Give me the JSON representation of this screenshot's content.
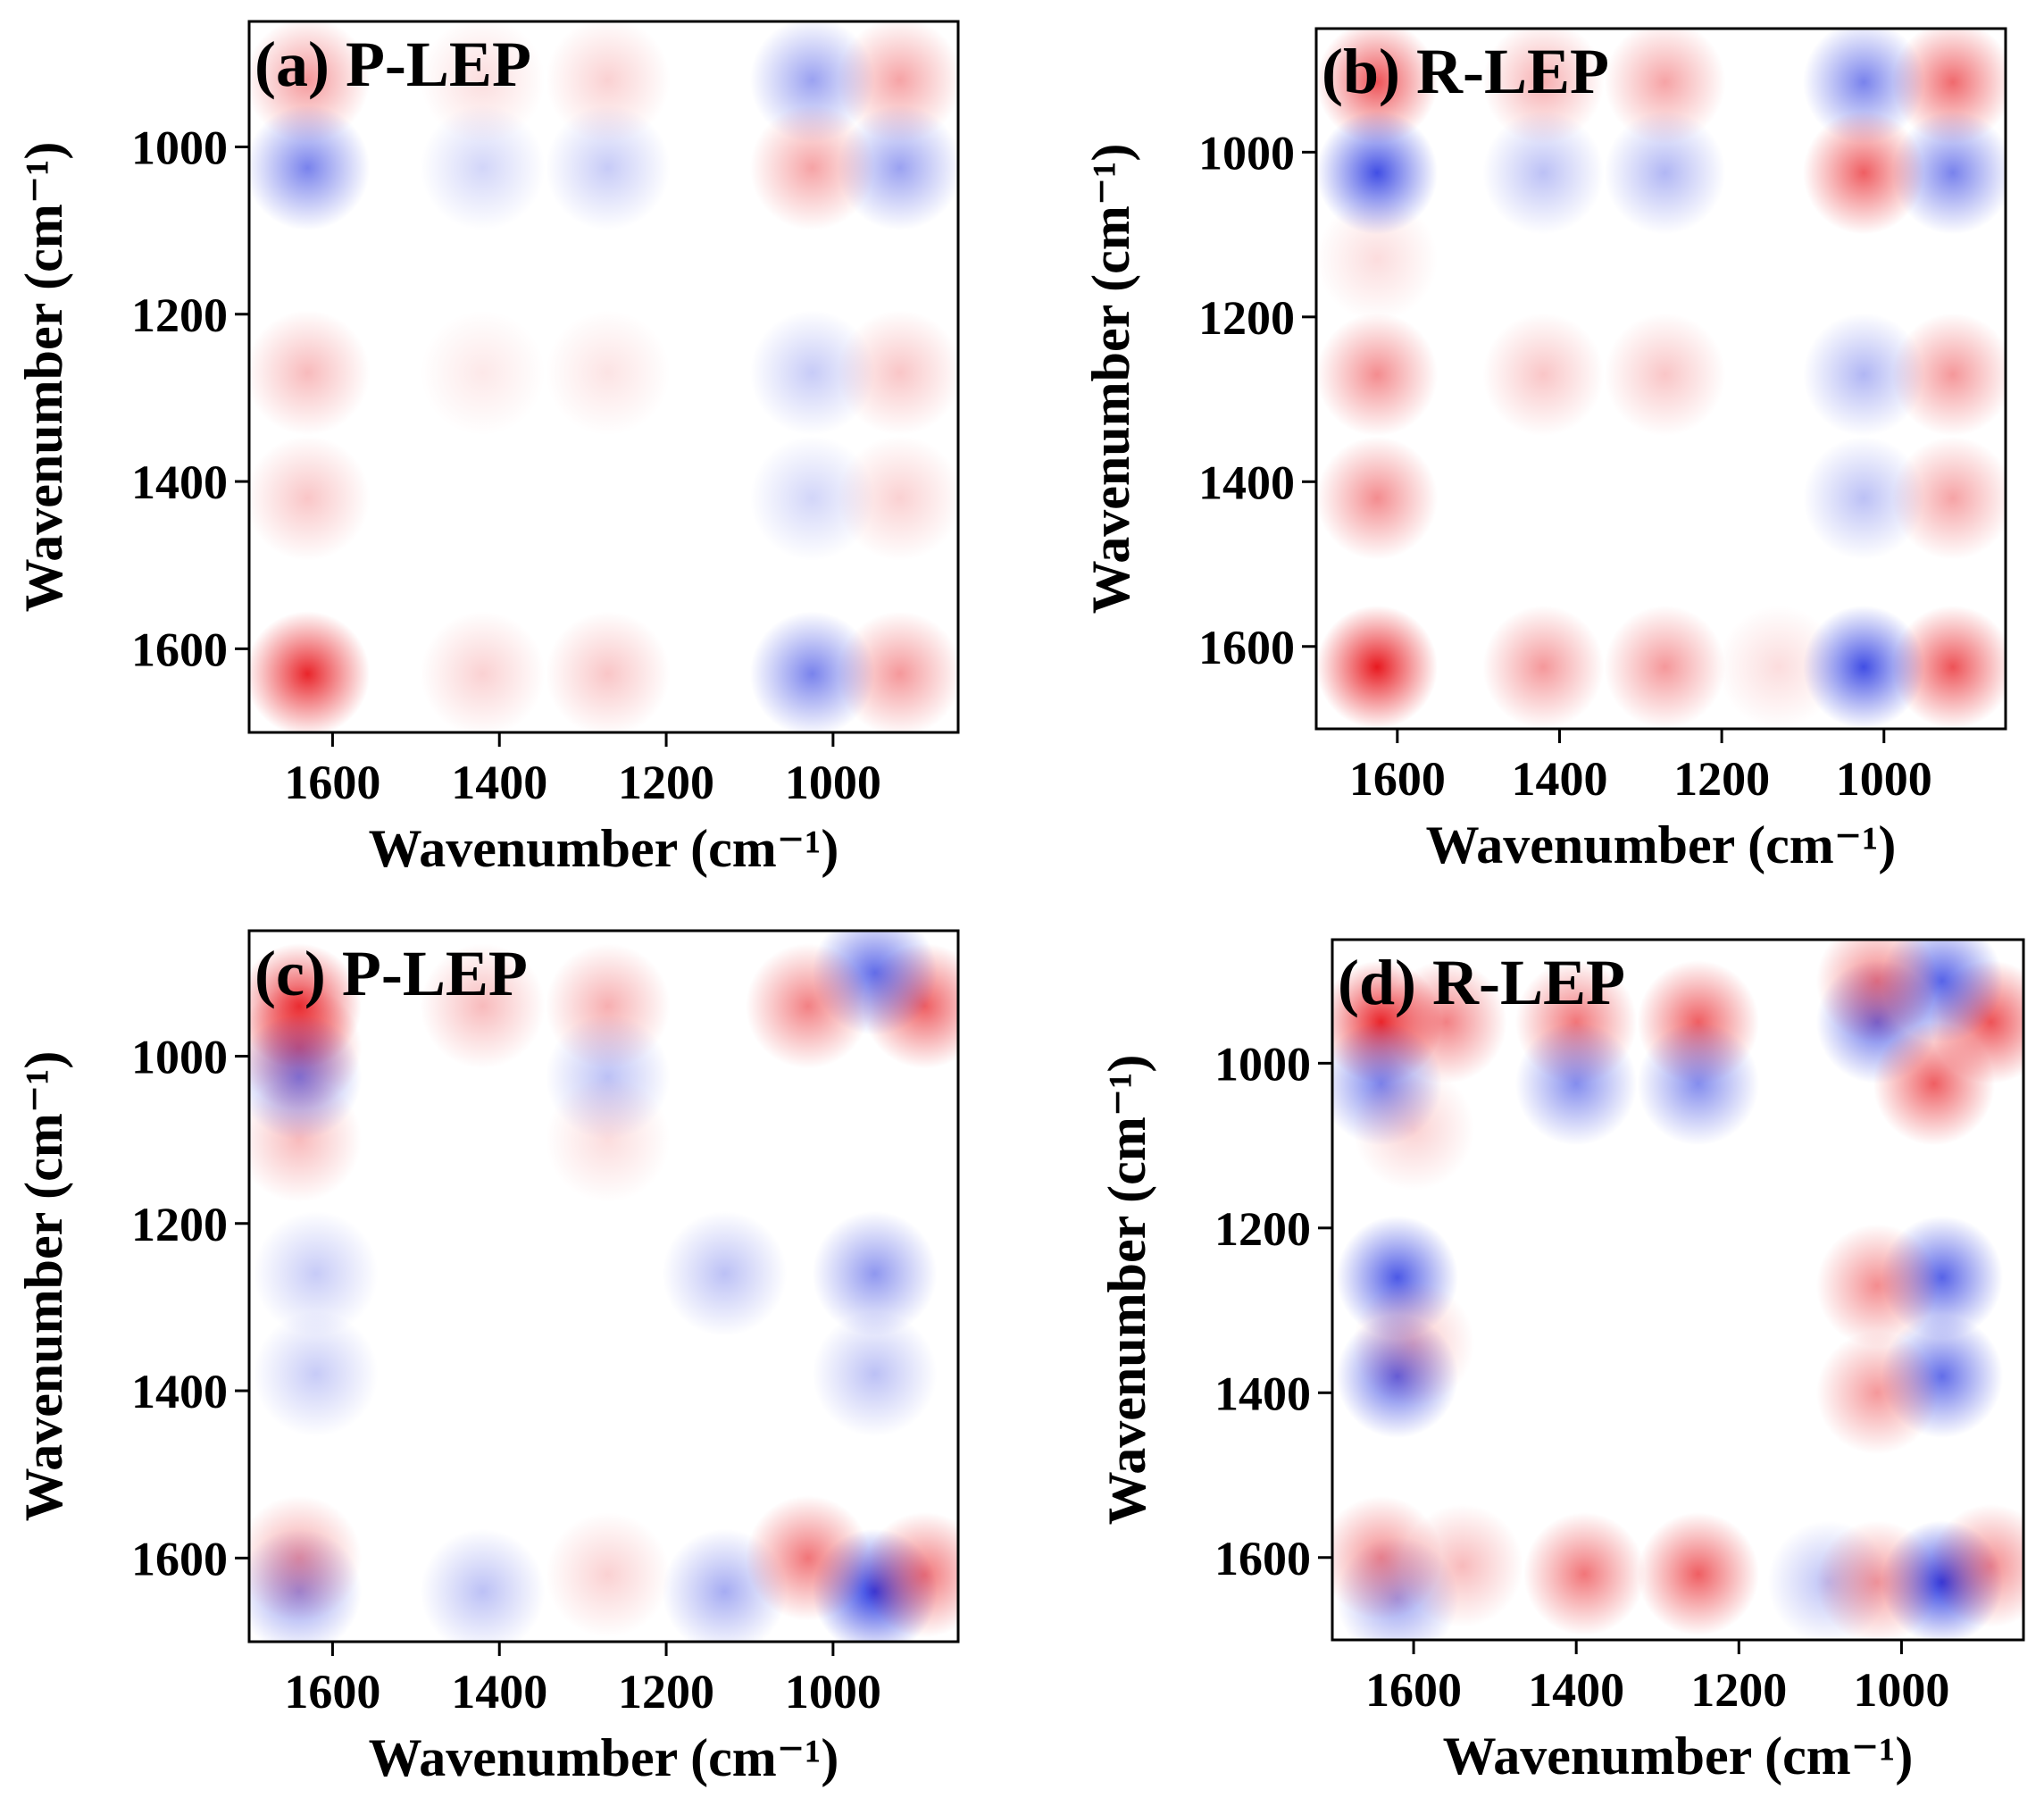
{
  "chart_data": [
    {
      "type": "heatmap",
      "title": "(a) P-LEP",
      "xlabel": "Wavenumber (cm⁻¹)",
      "ylabel": "Wavenumber (cm⁻¹)",
      "xlim": [
        1700,
        850
      ],
      "ylim": [
        850,
        1700
      ],
      "xticks": [
        1600,
        1400,
        1200,
        1000
      ],
      "yticks": [
        1000,
        1200,
        1400,
        1600
      ],
      "grid": false,
      "peaks": [
        {
          "x": 1630,
          "y": 1630,
          "value": 0.95
        },
        {
          "x": 1630,
          "y": 920,
          "value": 0.45
        },
        {
          "x": 920,
          "y": 1630,
          "value": 0.45
        },
        {
          "x": 920,
          "y": 920,
          "value": 0.4
        },
        {
          "x": 1630,
          "y": 1270,
          "value": 0.3
        },
        {
          "x": 1630,
          "y": 1420,
          "value": 0.25
        },
        {
          "x": 1270,
          "y": 1630,
          "value": 0.25
        },
        {
          "x": 1420,
          "y": 1630,
          "value": 0.2
        },
        {
          "x": 920,
          "y": 1270,
          "value": 0.25
        },
        {
          "x": 920,
          "y": 1420,
          "value": 0.2
        },
        {
          "x": 1270,
          "y": 1270,
          "value": 0.12
        },
        {
          "x": 1420,
          "y": 1270,
          "value": 0.1
        },
        {
          "x": 1270,
          "y": 920,
          "value": 0.2
        },
        {
          "x": 1420,
          "y": 920,
          "value": 0.15
        },
        {
          "x": 1025,
          "y": 1630,
          "value": -0.6
        },
        {
          "x": 1025,
          "y": 920,
          "value": -0.45
        },
        {
          "x": 1630,
          "y": 1025,
          "value": -0.6
        },
        {
          "x": 920,
          "y": 1025,
          "value": -0.45
        },
        {
          "x": 1025,
          "y": 1270,
          "value": -0.25
        },
        {
          "x": 1025,
          "y": 1420,
          "value": -0.2
        },
        {
          "x": 1270,
          "y": 1025,
          "value": -0.25
        },
        {
          "x": 1420,
          "y": 1025,
          "value": -0.2
        },
        {
          "x": 1025,
          "y": 1025,
          "value": 0.4
        }
      ]
    },
    {
      "type": "heatmap",
      "title": "(b) R-LEP",
      "xlabel": "Wavenumber (cm⁻¹)",
      "ylabel": "Wavenumber (cm⁻¹)",
      "xlim": [
        1700,
        850
      ],
      "ylim": [
        850,
        1700
      ],
      "xticks": [
        1600,
        1400,
        1200,
        1000
      ],
      "yticks": [
        1000,
        1200,
        1400,
        1600
      ],
      "grid": false,
      "peaks": [
        {
          "x": 1625,
          "y": 1625,
          "value": 1.0
        },
        {
          "x": 1625,
          "y": 915,
          "value": 0.75
        },
        {
          "x": 915,
          "y": 1625,
          "value": 0.75
        },
        {
          "x": 915,
          "y": 915,
          "value": 0.65
        },
        {
          "x": 1625,
          "y": 1270,
          "value": 0.5
        },
        {
          "x": 1625,
          "y": 1420,
          "value": 0.5
        },
        {
          "x": 1270,
          "y": 1625,
          "value": 0.45
        },
        {
          "x": 1420,
          "y": 1625,
          "value": 0.45
        },
        {
          "x": 915,
          "y": 1270,
          "value": 0.45
        },
        {
          "x": 915,
          "y": 1420,
          "value": 0.4
        },
        {
          "x": 1270,
          "y": 1270,
          "value": 0.25
        },
        {
          "x": 1420,
          "y": 1270,
          "value": 0.25
        },
        {
          "x": 1270,
          "y": 915,
          "value": 0.4
        },
        {
          "x": 1420,
          "y": 915,
          "value": 0.35
        },
        {
          "x": 1130,
          "y": 1625,
          "value": 0.15
        },
        {
          "x": 1625,
          "y": 1130,
          "value": 0.15
        },
        {
          "x": 1025,
          "y": 1625,
          "value": -0.85
        },
        {
          "x": 1025,
          "y": 915,
          "value": -0.6
        },
        {
          "x": 1625,
          "y": 1025,
          "value": -0.85
        },
        {
          "x": 915,
          "y": 1025,
          "value": -0.6
        },
        {
          "x": 1025,
          "y": 1270,
          "value": -0.35
        },
        {
          "x": 1025,
          "y": 1420,
          "value": -0.3
        },
        {
          "x": 1270,
          "y": 1025,
          "value": -0.35
        },
        {
          "x": 1420,
          "y": 1025,
          "value": -0.3
        },
        {
          "x": 1025,
          "y": 1025,
          "value": 0.7
        }
      ]
    },
    {
      "type": "heatmap",
      "title": "(c) P-LEP",
      "xlabel": "Wavenumber (cm⁻¹)",
      "ylabel": "Wavenumber (cm⁻¹)",
      "xlim": [
        1700,
        850
      ],
      "ylim": [
        850,
        1700
      ],
      "xticks": [
        1600,
        1400,
        1200,
        1000
      ],
      "yticks": [
        1000,
        1200,
        1400,
        1600
      ],
      "grid": false,
      "peaks": [
        {
          "x": 1640,
          "y": 940,
          "value": 0.9
        },
        {
          "x": 1640,
          "y": 990,
          "value": 0.6
        },
        {
          "x": 1640,
          "y": 1100,
          "value": 0.3
        },
        {
          "x": 890,
          "y": 940,
          "value": 0.7
        },
        {
          "x": 950,
          "y": 900,
          "value": -0.7
        },
        {
          "x": 950,
          "y": 1640,
          "value": -0.95
        },
        {
          "x": 1130,
          "y": 1640,
          "value": -0.4
        },
        {
          "x": 1640,
          "y": 1640,
          "value": -0.5
        },
        {
          "x": 1420,
          "y": 1640,
          "value": -0.3
        },
        {
          "x": 890,
          "y": 1620,
          "value": 0.6
        },
        {
          "x": 1640,
          "y": 1600,
          "value": 0.4
        },
        {
          "x": 1030,
          "y": 1600,
          "value": 0.6
        },
        {
          "x": 1030,
          "y": 940,
          "value": 0.55
        },
        {
          "x": 950,
          "y": 1260,
          "value": -0.5
        },
        {
          "x": 1130,
          "y": 1260,
          "value": -0.3
        },
        {
          "x": 1620,
          "y": 1260,
          "value": -0.25
        },
        {
          "x": 1620,
          "y": 1380,
          "value": -0.25
        },
        {
          "x": 950,
          "y": 1380,
          "value": -0.3
        },
        {
          "x": 1270,
          "y": 940,
          "value": 0.35
        },
        {
          "x": 1420,
          "y": 940,
          "value": 0.3
        },
        {
          "x": 1270,
          "y": 1620,
          "value": 0.2
        },
        {
          "x": 1640,
          "y": 1025,
          "value": -0.55
        },
        {
          "x": 1270,
          "y": 1025,
          "value": -0.3
        },
        {
          "x": 1270,
          "y": 1100,
          "value": 0.15
        }
      ]
    },
    {
      "type": "heatmap",
      "title": "(d) R-LEP",
      "xlabel": "Wavenumber (cm⁻¹)",
      "ylabel": "Wavenumber (cm⁻¹)",
      "xlim": [
        1700,
        850
      ],
      "ylim": [
        850,
        1700
      ],
      "xticks": [
        1600,
        1400,
        1200,
        1000
      ],
      "yticks": [
        1000,
        1200,
        1400,
        1600
      ],
      "grid": false,
      "peaks": [
        {
          "x": 1640,
          "y": 950,
          "value": 0.95
        },
        {
          "x": 1560,
          "y": 950,
          "value": 0.55
        },
        {
          "x": 1400,
          "y": 950,
          "value": 0.6
        },
        {
          "x": 1250,
          "y": 950,
          "value": 0.7
        },
        {
          "x": 890,
          "y": 950,
          "value": 0.75
        },
        {
          "x": 950,
          "y": 900,
          "value": -0.75
        },
        {
          "x": 1030,
          "y": 950,
          "value": -0.7
        },
        {
          "x": 1030,
          "y": 900,
          "value": 0.55
        },
        {
          "x": 1620,
          "y": 1260,
          "value": -0.8
        },
        {
          "x": 1620,
          "y": 1380,
          "value": -0.75
        },
        {
          "x": 950,
          "y": 1260,
          "value": -0.75
        },
        {
          "x": 950,
          "y": 1380,
          "value": -0.7
        },
        {
          "x": 950,
          "y": 1630,
          "value": -0.95
        },
        {
          "x": 1620,
          "y": 1650,
          "value": -0.45
        },
        {
          "x": 1090,
          "y": 1630,
          "value": -0.3
        },
        {
          "x": 1250,
          "y": 1620,
          "value": 0.7
        },
        {
          "x": 1390,
          "y": 1620,
          "value": 0.6
        },
        {
          "x": 1640,
          "y": 1600,
          "value": 0.5
        },
        {
          "x": 1540,
          "y": 1610,
          "value": 0.3
        },
        {
          "x": 890,
          "y": 1610,
          "value": 0.5
        },
        {
          "x": 1030,
          "y": 1630,
          "value": 0.45
        },
        {
          "x": 1030,
          "y": 1270,
          "value": 0.5
        },
        {
          "x": 1030,
          "y": 1400,
          "value": 0.45
        },
        {
          "x": 1640,
          "y": 1025,
          "value": -0.6
        },
        {
          "x": 1400,
          "y": 1025,
          "value": -0.55
        },
        {
          "x": 1250,
          "y": 1025,
          "value": -0.55
        },
        {
          "x": 960,
          "y": 1025,
          "value": 0.7
        },
        {
          "x": 1600,
          "y": 1080,
          "value": 0.2
        },
        {
          "x": 1600,
          "y": 1340,
          "value": 0.25
        }
      ]
    }
  ]
}
